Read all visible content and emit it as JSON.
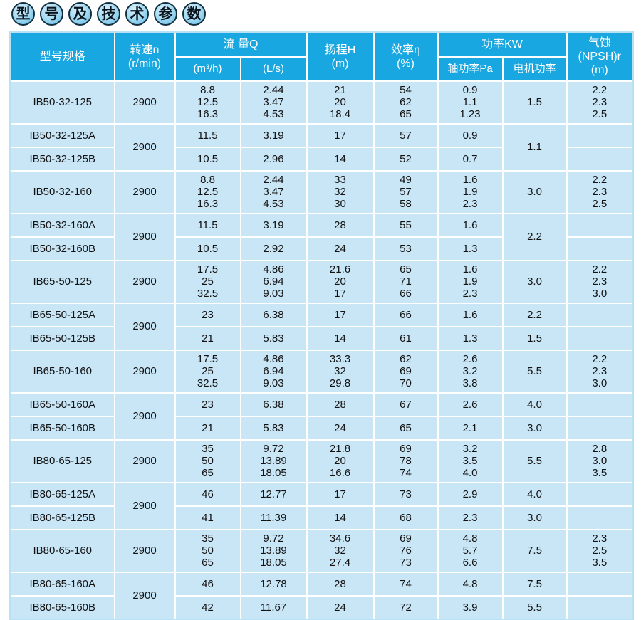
{
  "title": {
    "chars": [
      "型",
      "号",
      "及",
      "技",
      "术",
      "参",
      "数"
    ]
  },
  "colors": {
    "header_bg": "#18a7e0",
    "cell_bg": "#c9e6f7",
    "grid_line": "#ffffff",
    "outer_border": "#b9e0f3",
    "header_text": "#ffffff",
    "body_text": "#121212",
    "title_circle_fill": "#a9dcf3",
    "title_circle_ring": "#14303f"
  },
  "header": {
    "model": "型号规格",
    "speed_l1": "转速n",
    "speed_l2": "(r/min)",
    "flow": "流 量Q",
    "flow_m3h": "(m³/h)",
    "flow_ls": "(L/s)",
    "head_l1": "扬程H",
    "head_l2": "(m)",
    "eff_l1": "效率η",
    "eff_l2": "(%)",
    "power": "功率KW",
    "power_shaft": "轴功率Pa",
    "power_motor": "电机功率",
    "npsh_l1": "气蚀",
    "npsh_l2": "(NPSH)r",
    "npsh_l3": "(m)"
  },
  "table": {
    "groups": [
      {
        "main": {
          "model": "IB50-32-125",
          "speed": "2900",
          "flow_m3h": [
            "8.8",
            "12.5",
            "16.3"
          ],
          "flow_ls": [
            "2.44",
            "3.47",
            "4.53"
          ],
          "head": [
            "21",
            "20",
            "18.4"
          ],
          "eff": [
            "54",
            "62",
            "65"
          ],
          "shaft_power": [
            "0.9",
            "1.1",
            "1.23"
          ],
          "motor_power": "1.5",
          "npsh": [
            "2.2",
            "2.3",
            "2.5"
          ]
        },
        "sub_speed": "2900",
        "motor_merged": true,
        "subs": [
          {
            "model": "IB50-32-125A",
            "flow_m3h": "11.5",
            "flow_ls": "3.19",
            "head": "17",
            "eff": "57",
            "shaft_power": "0.9",
            "motor_power": "1.1",
            "npsh": ""
          },
          {
            "model": "IB50-32-125B",
            "flow_m3h": "10.5",
            "flow_ls": "2.96",
            "head": "14",
            "eff": "52",
            "shaft_power": "0.7",
            "motor_power": "",
            "npsh": ""
          }
        ]
      },
      {
        "main": {
          "model": "IB50-32-160",
          "speed": "2900",
          "flow_m3h": [
            "8.8",
            "12.5",
            "16.3"
          ],
          "flow_ls": [
            "2.44",
            "3.47",
            "4.53"
          ],
          "head": [
            "33",
            "32",
            "30"
          ],
          "eff": [
            "49",
            "57",
            "58"
          ],
          "shaft_power": [
            "1.6",
            "1.9",
            "2.3"
          ],
          "motor_power": "3.0",
          "npsh": [
            "2.2",
            "2.3",
            "2.5"
          ]
        },
        "sub_speed": "2900",
        "motor_merged": true,
        "subs": [
          {
            "model": "IB50-32-160A",
            "flow_m3h": "11.5",
            "flow_ls": "3.19",
            "head": "28",
            "eff": "55",
            "shaft_power": "1.6",
            "motor_power": "2.2",
            "npsh": ""
          },
          {
            "model": "IB50-32-160B",
            "flow_m3h": "10.5",
            "flow_ls": "2.92",
            "head": "24",
            "eff": "53",
            "shaft_power": "1.3",
            "motor_power": "",
            "npsh": ""
          }
        ]
      },
      {
        "main": {
          "model": "IB65-50-125",
          "speed": "2900",
          "flow_m3h": [
            "17.5",
            "25",
            "32.5"
          ],
          "flow_ls": [
            "4.86",
            "6.94",
            "9.03"
          ],
          "head": [
            "21.6",
            "20",
            "17"
          ],
          "eff": [
            "65",
            "71",
            "66"
          ],
          "shaft_power": [
            "1.6",
            "1.9",
            "2.3"
          ],
          "motor_power": "3.0",
          "npsh": [
            "2.2",
            "2.3",
            "3.0"
          ]
        },
        "sub_speed": "2900",
        "motor_merged": false,
        "subs": [
          {
            "model": "IB65-50-125A",
            "flow_m3h": "23",
            "flow_ls": "6.38",
            "head": "17",
            "eff": "66",
            "shaft_power": "1.6",
            "motor_power": "2.2",
            "npsh": ""
          },
          {
            "model": "IB65-50-125B",
            "flow_m3h": "21",
            "flow_ls": "5.83",
            "head": "14",
            "eff": "61",
            "shaft_power": "1.3",
            "motor_power": "1.5",
            "npsh": ""
          }
        ]
      },
      {
        "main": {
          "model": "IB65-50-160",
          "speed": "2900",
          "flow_m3h": [
            "17.5",
            "25",
            "32.5"
          ],
          "flow_ls": [
            "4.86",
            "6.94",
            "9.03"
          ],
          "head": [
            "33.3",
            "32",
            "29.8"
          ],
          "eff": [
            "62",
            "69",
            "70"
          ],
          "shaft_power": [
            "2.6",
            "3.2",
            "3.8"
          ],
          "motor_power": "5.5",
          "npsh": [
            "2.2",
            "2.3",
            "3.0"
          ]
        },
        "sub_speed": "2900",
        "motor_merged": false,
        "subs": [
          {
            "model": "IB65-50-160A",
            "flow_m3h": "23",
            "flow_ls": "6.38",
            "head": "28",
            "eff": "67",
            "shaft_power": "2.6",
            "motor_power": "4.0",
            "npsh": ""
          },
          {
            "model": "IB65-50-160B",
            "flow_m3h": "21",
            "flow_ls": "5.83",
            "head": "24",
            "eff": "65",
            "shaft_power": "2.1",
            "motor_power": "3.0",
            "npsh": ""
          }
        ]
      },
      {
        "main": {
          "model": "IB80-65-125",
          "speed": "2900",
          "flow_m3h": [
            "35",
            "50",
            "65"
          ],
          "flow_ls": [
            "9.72",
            "13.89",
            "18.05"
          ],
          "head": [
            "21.8",
            "20",
            "16.6"
          ],
          "eff": [
            "69",
            "78",
            "74"
          ],
          "shaft_power": [
            "3.2",
            "3.5",
            "4.0"
          ],
          "motor_power": "5.5",
          "npsh": [
            "2.8",
            "3.0",
            "3.5"
          ]
        },
        "sub_speed": "2900",
        "motor_merged": false,
        "subs": [
          {
            "model": "IB80-65-125A",
            "flow_m3h": "46",
            "flow_ls": "12.77",
            "head": "17",
            "eff": "73",
            "shaft_power": "2.9",
            "motor_power": "4.0",
            "npsh": ""
          },
          {
            "model": "IB80-65-125B",
            "flow_m3h": "41",
            "flow_ls": "11.39",
            "head": "14",
            "eff": "68",
            "shaft_power": "2.3",
            "motor_power": "3.0",
            "npsh": ""
          }
        ]
      },
      {
        "main": {
          "model": "IB80-65-160",
          "speed": "2900",
          "flow_m3h": [
            "35",
            "50",
            "65"
          ],
          "flow_ls": [
            "9.72",
            "13.89",
            "18.05"
          ],
          "head": [
            "34.6",
            "32",
            "27.4"
          ],
          "eff": [
            "69",
            "76",
            "73"
          ],
          "shaft_power": [
            "4.8",
            "5.7",
            "6.6"
          ],
          "motor_power": "7.5",
          "npsh": [
            "2.3",
            "2.5",
            "3.5"
          ]
        },
        "sub_speed": "2900",
        "motor_merged": false,
        "subs": [
          {
            "model": "IB80-65-160A",
            "flow_m3h": "46",
            "flow_ls": "12.78",
            "head": "28",
            "eff": "74",
            "shaft_power": "4.8",
            "motor_power": "7.5",
            "npsh": ""
          },
          {
            "model": "IB80-65-160B",
            "flow_m3h": "42",
            "flow_ls": "11.67",
            "head": "24",
            "eff": "72",
            "shaft_power": "3.9",
            "motor_power": "5.5",
            "npsh": ""
          }
        ]
      }
    ]
  }
}
